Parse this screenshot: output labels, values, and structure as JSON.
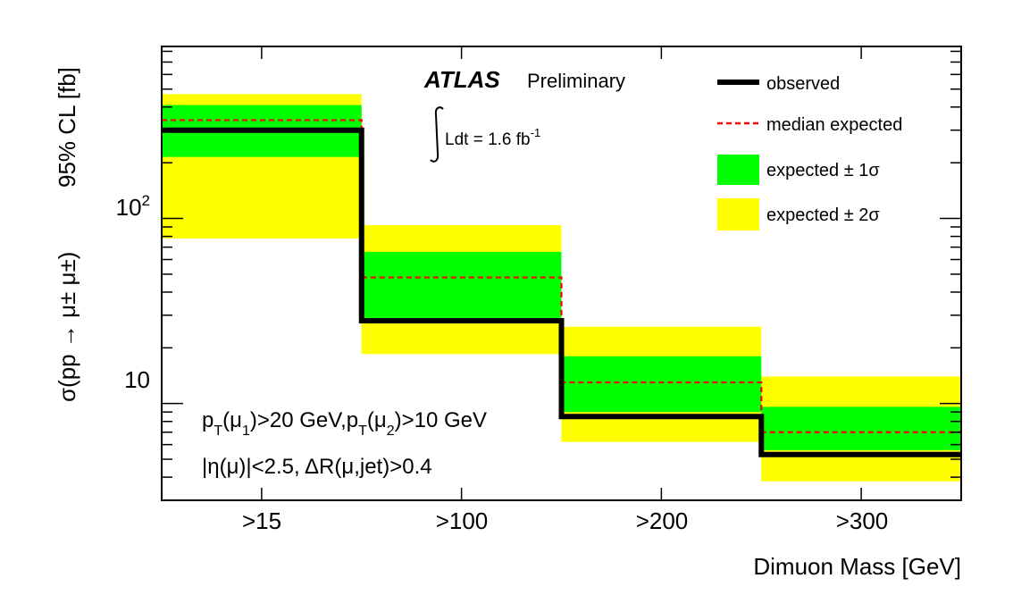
{
  "chart_data": {
    "type": "step",
    "title": "",
    "xlabel": "Dimuon Mass [GeV]",
    "ylabel_line1": "95% CL [fb]",
    "ylabel_line2": "σ(pp → μ± μ±)",
    "yscale": "log",
    "ylim": [
      3.0,
      850
    ],
    "categories": [
      ">15",
      ">100",
      ">200",
      ">300"
    ],
    "series": [
      {
        "name": "observed",
        "values": [
          300,
          28,
          8.5,
          5.3
        ]
      },
      {
        "name": "median expected",
        "values": [
          340,
          48,
          13,
          7
        ]
      },
      {
        "name": "expected ± 1σ",
        "low": [
          215,
          29,
          9,
          5.6
        ],
        "high": [
          410,
          66,
          18,
          9.6
        ]
      },
      {
        "name": "expected ± 2σ",
        "low": [
          78,
          18.5,
          6.2,
          3.8
        ],
        "high": [
          470,
          92,
          26,
          14
        ]
      }
    ],
    "yticks_major": [
      {
        "value": 100,
        "base": "10",
        "exp": "2"
      },
      {
        "value": 10,
        "base": "10",
        "exp": ""
      }
    ],
    "yticks_minor": [
      4,
      5,
      6,
      7,
      8,
      9,
      20,
      30,
      40,
      50,
      60,
      70,
      80,
      90,
      200,
      300,
      400,
      500,
      600,
      700,
      800
    ],
    "legend": {
      "position": "top-right",
      "entries": [
        {
          "label": "observed",
          "style": "line",
          "color": "#000000"
        },
        {
          "label": "median expected",
          "style": "dashed",
          "color": "#ff0000"
        },
        {
          "label": "expected ± 1σ",
          "style": "box",
          "color": "#00ff00"
        },
        {
          "label": "expected ± 2σ",
          "style": "box",
          "color": "#ffff00"
        }
      ]
    },
    "annotations": {
      "experiment": "ATLAS",
      "status": "Preliminary",
      "lumi_text": "Ldt = 1.6 fb",
      "lumi_exp": "-1",
      "cut_line1": "p",
      "cut_line1_sub1": "T",
      "cut_line1_mid1": "(μ",
      "cut_line1_sub2": "1",
      "cut_line1_mid2": ")>20 GeV,p",
      "cut_line1_sub3": "T",
      "cut_line1_mid3": "(μ",
      "cut_line1_sub4": "2",
      "cut_line1_end": ")>10 GeV",
      "cut_line2": "|η(μ)|<2.5, ΔR(μ,jet)>0.4"
    },
    "colors": {
      "observed": "#000000",
      "expected": "#ff0000",
      "band1": "#00ff00",
      "band2": "#ffff00"
    }
  }
}
